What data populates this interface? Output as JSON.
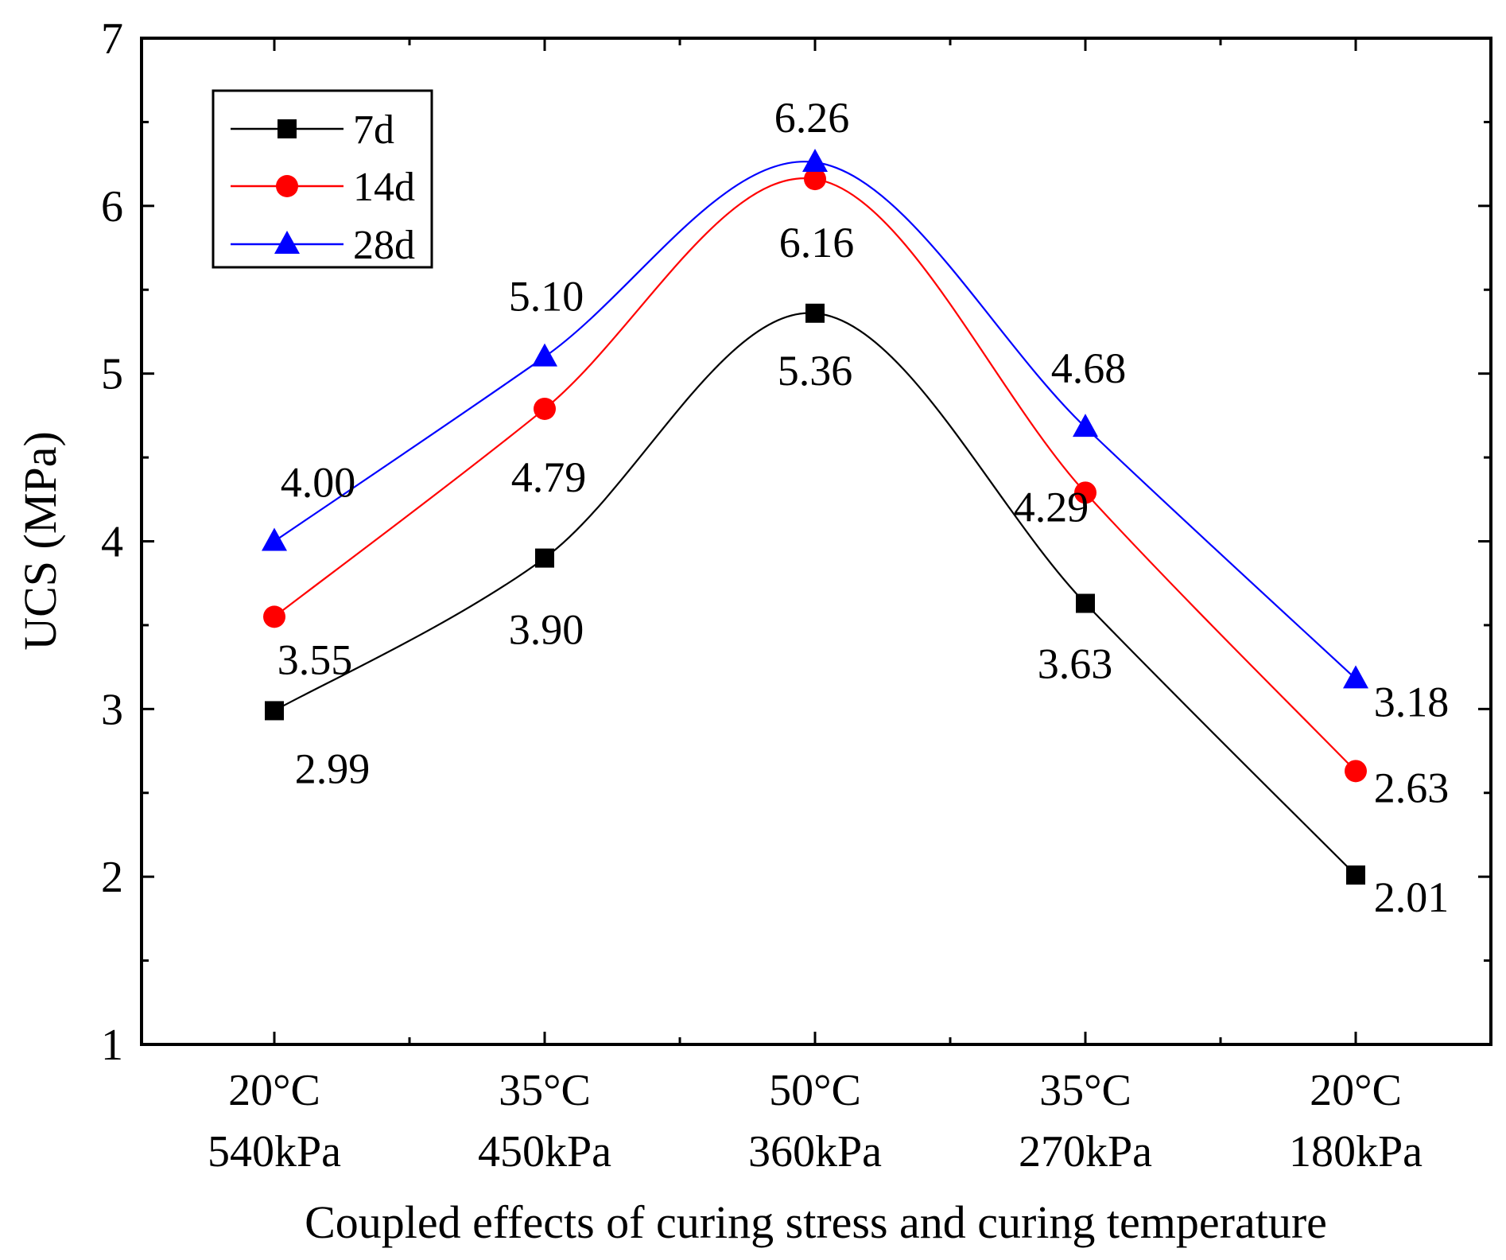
{
  "chart_data": {
    "type": "line",
    "title": "",
    "xlabel": "Coupled effects of curing stress and curing temperature",
    "ylabel": "UCS (MPa)",
    "ylim": [
      1,
      7
    ],
    "yticks": [
      "1",
      "2",
      "3",
      "4",
      "5",
      "6",
      "7"
    ],
    "grid": false,
    "legend_position": "top-left",
    "categories": [
      {
        "temperature": "20°C",
        "stress": "540kPa"
      },
      {
        "temperature": "35°C",
        "stress": "450kPa"
      },
      {
        "temperature": "50°C",
        "stress": "360kPa"
      },
      {
        "temperature": "35°C",
        "stress": "270kPa"
      },
      {
        "temperature": "20°C",
        "stress": "180kPa"
      }
    ],
    "series": [
      {
        "name": "7d",
        "color": "#000000",
        "marker": "square",
        "values": [
          2.99,
          3.9,
          5.36,
          3.63,
          2.01
        ],
        "labels": [
          "2.99",
          "3.90",
          "5.36",
          "3.63",
          "2.01"
        ]
      },
      {
        "name": "14d",
        "color": "#ff0000",
        "marker": "circle",
        "values": [
          3.55,
          4.79,
          6.16,
          4.29,
          2.63
        ],
        "labels": [
          "3.55",
          "4.79",
          "6.16",
          "4.29",
          "2.63"
        ]
      },
      {
        "name": "28d",
        "color": "#0000ff",
        "marker": "triangle",
        "values": [
          4.0,
          5.1,
          6.26,
          4.68,
          3.18
        ],
        "labels": [
          "4.00",
          "5.10",
          "6.26",
          "4.68",
          "3.18"
        ]
      }
    ]
  }
}
